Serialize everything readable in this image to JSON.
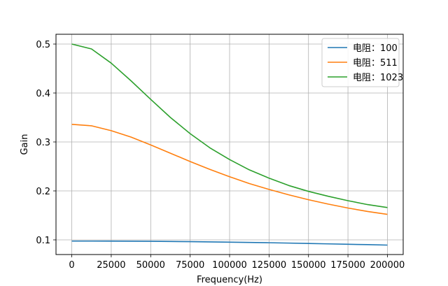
{
  "chart_data": {
    "type": "line",
    "title": "",
    "xlabel": "Frequency(Hz)",
    "ylabel": "Gain",
    "xlim": [
      -10000,
      210000
    ],
    "ylim": [
      0.07,
      0.52
    ],
    "xticks": [
      0,
      25000,
      50000,
      75000,
      100000,
      125000,
      150000,
      175000,
      200000
    ],
    "xtick_labels": [
      "0",
      "25000",
      "50000",
      "75000",
      "100000",
      "125000",
      "150000",
      "175000",
      "200000"
    ],
    "yticks": [
      0.1,
      0.2,
      0.3,
      0.4,
      0.5
    ],
    "ytick_labels": [
      "0.1",
      "0.2",
      "0.3",
      "0.4",
      "0.5"
    ],
    "grid": true,
    "legend_position": "top-right",
    "x": [
      0,
      12500,
      25000,
      37500,
      50000,
      62500,
      75000,
      87500,
      100000,
      112500,
      125000,
      137500,
      150000,
      162500,
      175000,
      187500,
      200000
    ],
    "series": [
      {
        "name": "电阻：100",
        "color": "#1f77b4",
        "values": [
          0.0975,
          0.0975,
          0.0974,
          0.0972,
          0.097,
          0.0967,
          0.0963,
          0.0958,
          0.0953,
          0.0947,
          0.0941,
          0.0934,
          0.0926,
          0.0918,
          0.091,
          0.0902,
          0.0893
        ]
      },
      {
        "name": "电阻：511",
        "color": "#ff7f0e",
        "values": [
          0.336,
          0.333,
          0.323,
          0.31,
          0.294,
          0.277,
          0.26,
          0.244,
          0.229,
          0.215,
          0.203,
          0.192,
          0.182,
          0.173,
          0.165,
          0.158,
          0.152
        ]
      },
      {
        "name": "电阻：1023",
        "color": "#2ca02c",
        "values": [
          0.5,
          0.49,
          0.461,
          0.425,
          0.387,
          0.35,
          0.317,
          0.288,
          0.264,
          0.243,
          0.226,
          0.211,
          0.199,
          0.189,
          0.18,
          0.172,
          0.166
        ]
      }
    ]
  }
}
